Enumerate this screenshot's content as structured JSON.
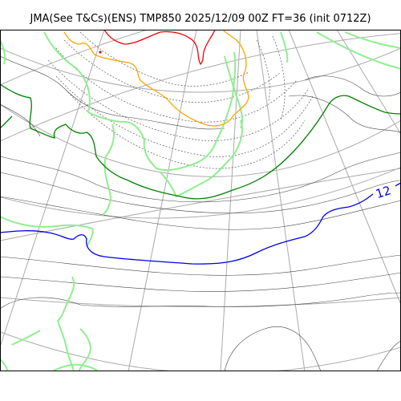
{
  "title": "JMA(See T&Cs)(ENS) TMP850 2025/12/09 00Z FT=36 (init 0712Z)",
  "contour_labels": {
    "blue_isotherm": "12"
  },
  "colors": {
    "graticule": "#aaaaaa",
    "coastline": "#90ee90",
    "isotherm_thin": "#444444",
    "isotherm_dotted": "#555555",
    "green_isotherm": "#008000",
    "blue_isotherm": "#0000ee",
    "orange_isotherm": "#ffa500",
    "red_isotherm": "#ee0000",
    "frame": "#000000"
  }
}
